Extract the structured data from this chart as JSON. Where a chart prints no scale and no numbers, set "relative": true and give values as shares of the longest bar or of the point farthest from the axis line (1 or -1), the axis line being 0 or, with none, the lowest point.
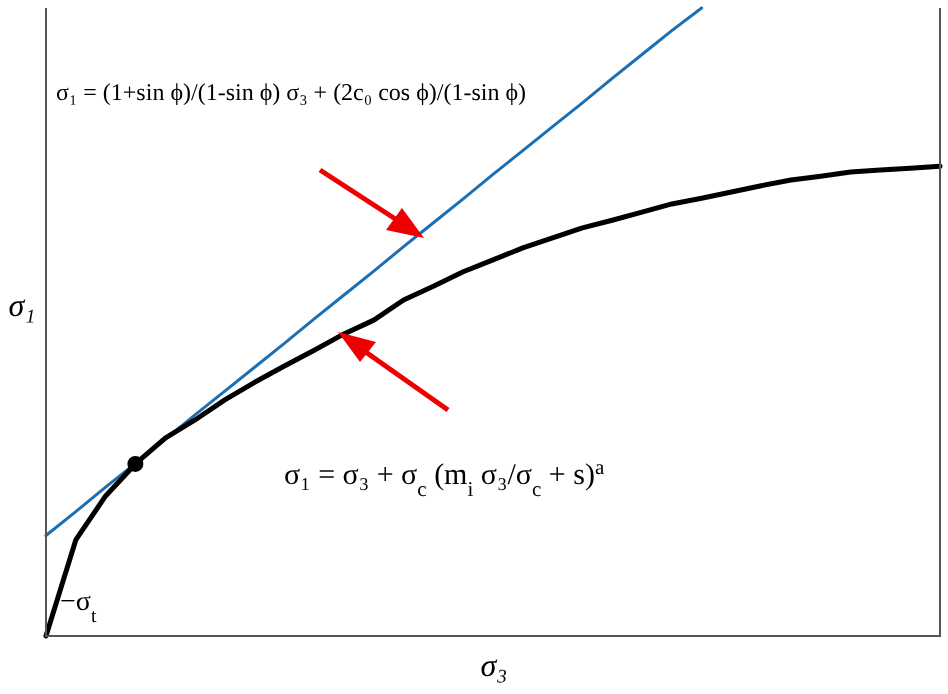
{
  "chart_data": {
    "type": "line",
    "relative": true,
    "xlabel": "σ₃",
    "ylabel": "σ₁",
    "categories": [
      null,
      null,
      null,
      null,
      null,
      null,
      null,
      null,
      null,
      null,
      null,
      null,
      null,
      null,
      null,
      null,
      null,
      null,
      null,
      null,
      null,
      null,
      null,
      null,
      null,
      null,
      null,
      null,
      null,
      null,
      null
    ],
    "series": [
      {
        "color": "#1a6fb5",
        "values": [
          0.16,
          0.198,
          0.237,
          0.275,
          0.313,
          0.352,
          0.39,
          0.428,
          0.466,
          0.505,
          0.543,
          0.581,
          0.62,
          0.658,
          0.696,
          0.735,
          0.773,
          0.811,
          0.849,
          0.888,
          0.926,
          0.964,
          1.0,
          null,
          null,
          null,
          null,
          null,
          null,
          null,
          null
        ]
      },
      {
        "color": "#000000",
        "values": [
          0,
          0.153,
          0.223,
          0.274,
          0.315,
          0.344,
          0.376,
          0.404,
          0.43,
          0.455,
          0.481,
          0.503,
          0.535,
          0.557,
          0.58,
          0.599,
          0.618,
          0.634,
          0.65,
          0.662,
          0.675,
          0.688,
          0.697,
          0.707,
          0.717,
          0.726,
          0.732,
          0.739,
          0.742,
          0.745,
          0.748
        ]
      }
    ],
    "marker": "none",
    "annotations": [
      "σ₁ = (1+sin ϕ)/(1-sin ϕ) σ₃ + (2c₀ cos ϕ)/(1-sin ϕ)",
      "σ₁ = σ₃ + σ$_{c}$ (m$_{i}$ σ₃/σ$_{c}$ + s)$^{a}$",
      "−σ$_{t}$"
    ]
  }
}
